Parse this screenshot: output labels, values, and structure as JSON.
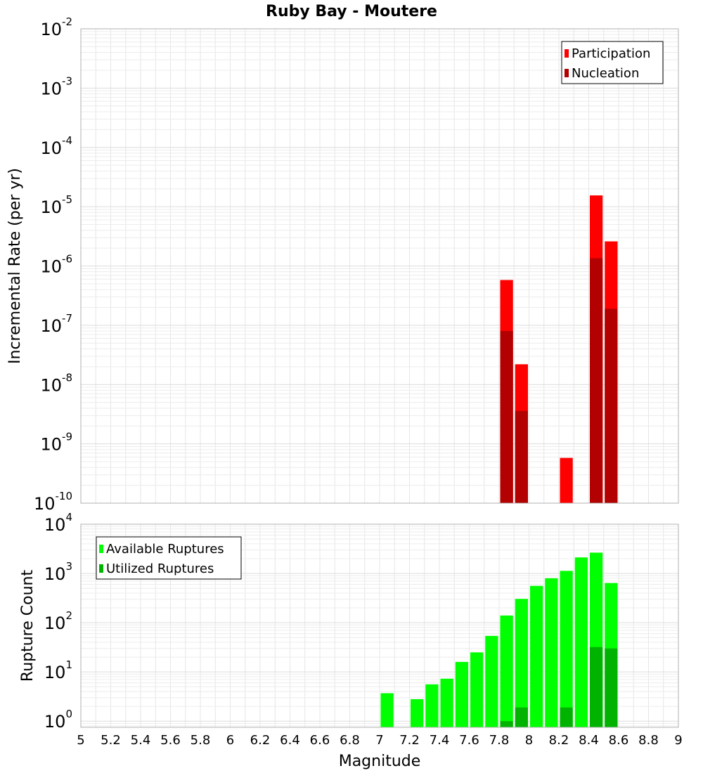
{
  "title": "Ruby Bay - Moutere",
  "x_axis": {
    "label": "Magnitude",
    "range": [
      5,
      9
    ],
    "ticks": [
      "5",
      "5.2",
      "5.4",
      "5.6",
      "5.8",
      "6",
      "6.2",
      "6.4",
      "6.6",
      "6.8",
      "7",
      "7.2",
      "7.4",
      "7.6",
      "7.8",
      "8",
      "8.2",
      "8.4",
      "8.6",
      "8.8",
      "9"
    ]
  },
  "chart_data": [
    {
      "type": "bar",
      "panel": "top",
      "ylabel": "Incremental Rate (per yr)",
      "yscale": "log",
      "ylim": [
        1e-10,
        0.01
      ],
      "yticks": [
        {
          "base": "10",
          "exp": "-2"
        },
        {
          "base": "10",
          "exp": "-3"
        },
        {
          "base": "10",
          "exp": "-4"
        },
        {
          "base": "10",
          "exp": "-5"
        },
        {
          "base": "10",
          "exp": "-6"
        },
        {
          "base": "10",
          "exp": "-7"
        },
        {
          "base": "10",
          "exp": "-8"
        },
        {
          "base": "10",
          "exp": "-9"
        },
        {
          "base": "10",
          "exp": "-10"
        }
      ],
      "legend_position": "top-right",
      "grid": true,
      "series": [
        {
          "name": "Participation",
          "color": "#ff0000",
          "x": [
            7.85,
            7.95,
            8.25,
            8.45,
            8.55
          ],
          "values": [
            5.8e-07,
            2.2e-08,
            5.8e-10,
            1.55e-05,
            2.6e-06
          ]
        },
        {
          "name": "Nucleation",
          "color": "#b30000",
          "x": [
            7.85,
            7.95,
            8.45,
            8.55
          ],
          "values": [
            8e-08,
            3.6e-09,
            1.35e-06,
            1.9e-07
          ]
        }
      ]
    },
    {
      "type": "bar",
      "panel": "bottom",
      "ylabel": "Rupture Count",
      "yscale": "log",
      "ylim": [
        0.75,
        10000
      ],
      "yticks": [
        {
          "base": "10",
          "exp": "4"
        },
        {
          "base": "10",
          "exp": "3"
        },
        {
          "base": "10",
          "exp": "2"
        },
        {
          "base": "10",
          "exp": "1"
        },
        {
          "base": "10",
          "exp": "0"
        }
      ],
      "legend_position": "top-left",
      "grid": true,
      "series": [
        {
          "name": "Available Ruptures",
          "color": "#00ff00",
          "x": [
            7.05,
            7.25,
            7.35,
            7.45,
            7.55,
            7.65,
            7.75,
            7.85,
            7.95,
            8.05,
            8.15,
            8.25,
            8.35,
            8.45,
            8.55
          ],
          "values": [
            3.7,
            2.8,
            5.6,
            7.3,
            16,
            25,
            54,
            140,
            305,
            560,
            800,
            1130,
            2120,
            2650,
            640
          ]
        },
        {
          "name": "Utilized Ruptures",
          "color": "#00b300",
          "x": [
            7.85,
            7.95,
            8.25,
            8.45,
            8.55
          ],
          "values": [
            1,
            1.9,
            1.9,
            32,
            30
          ]
        }
      ]
    }
  ]
}
